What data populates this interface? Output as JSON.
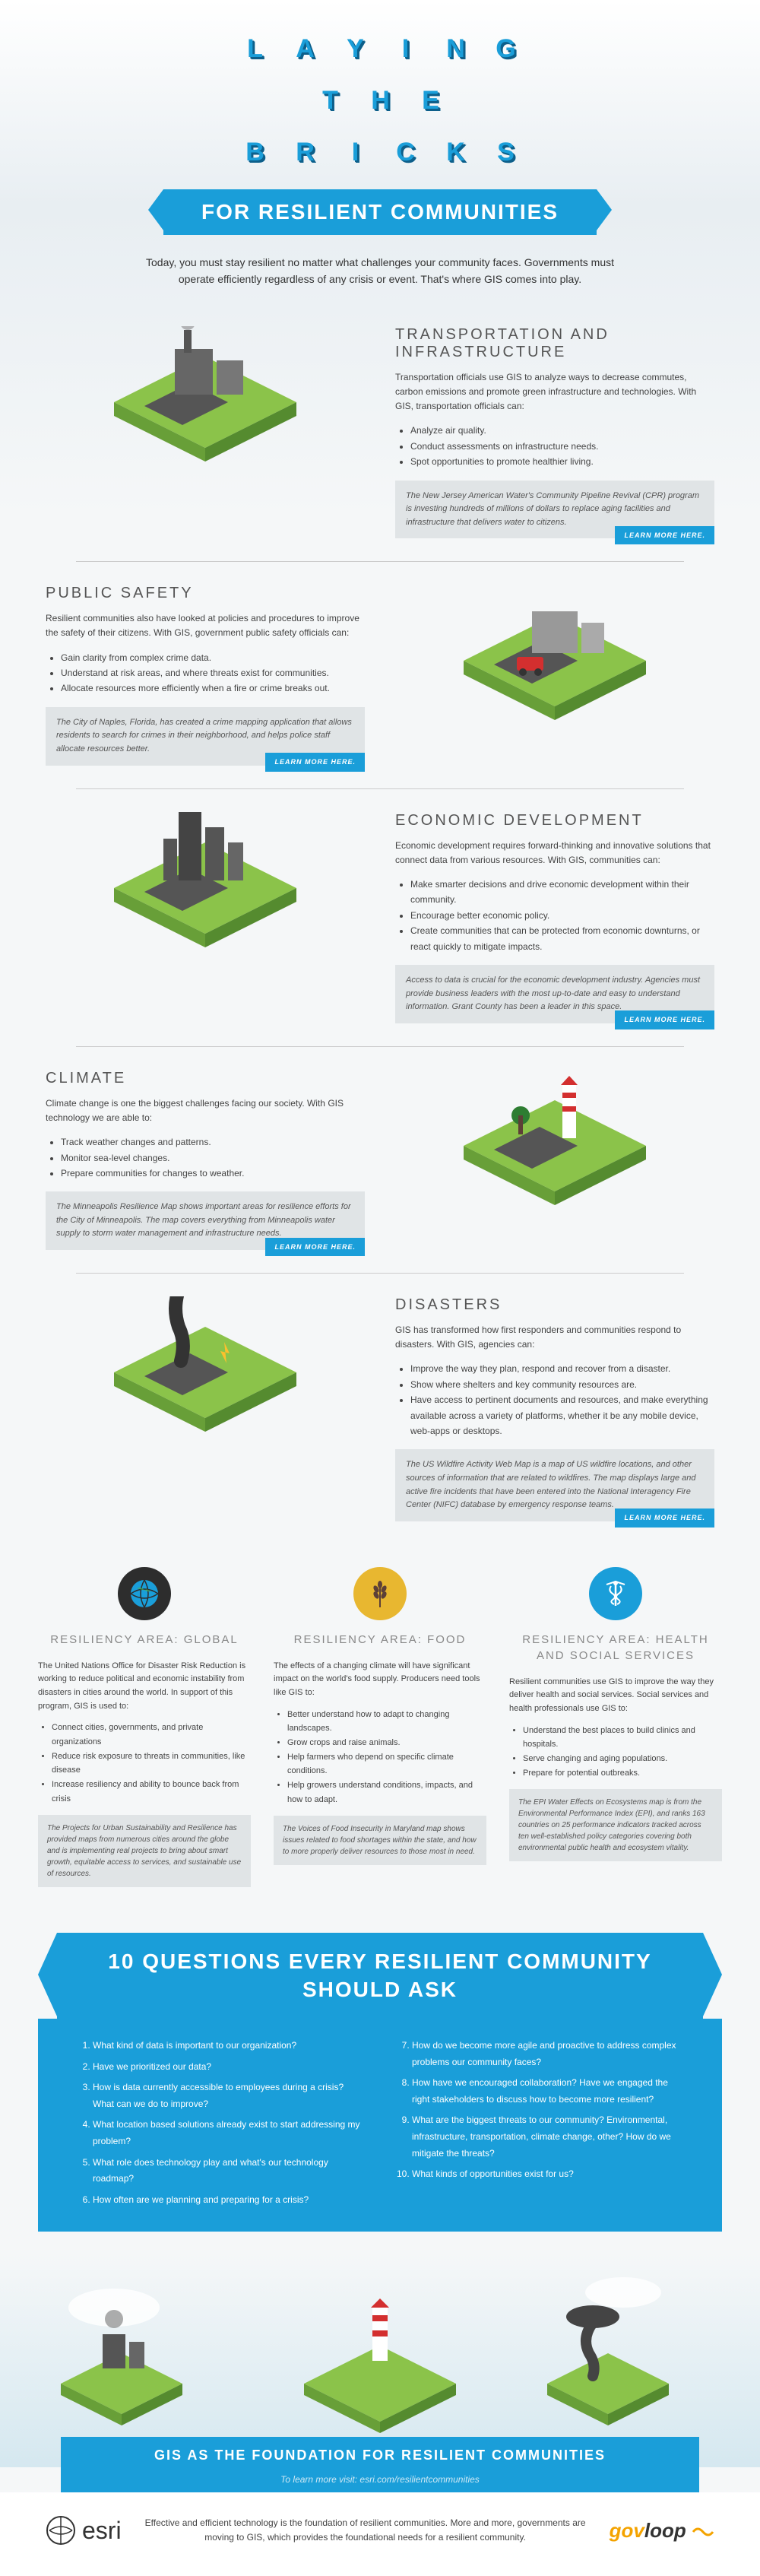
{
  "header": {
    "title_letters": [
      "L",
      "A",
      "Y",
      "I",
      "N",
      "G",
      "T",
      "H",
      "E",
      "B",
      "R",
      "I",
      "C",
      "K",
      "S"
    ],
    "banner": "FOR RESILIENT COMMUNITIES",
    "intro": "Today, you must stay resilient no matter what challenges your community faces. Governments must operate efficiently regardless of any crisis or event. That's where GIS comes into play."
  },
  "sections": [
    {
      "side": "right-text",
      "title": "TRANSPORTATION AND INFRASTRUCTURE",
      "desc": "Transportation officials use GIS to analyze ways to decrease commutes, carbon emissions and promote green infrastructure and technologies. With GIS, transportation officials can:",
      "items": [
        "Analyze air quality.",
        "Conduct assessments on infrastructure needs.",
        "Spot opportunities to promote healthier living."
      ],
      "callout": "The New Jersey American Water's Community Pipeline Revival (CPR) program is investing hundreds of millions of dollars to replace aging facilities and infrastructure that delivers water to citizens.",
      "learn": "LEARN MORE HERE.",
      "scene": "factory"
    },
    {
      "side": "left-text",
      "title": "PUBLIC SAFETY",
      "desc": "Resilient communities also have looked at policies and procedures to improve the safety of their citizens. With GIS, government public safety officials can:",
      "items": [
        "Gain clarity from complex crime data.",
        "Understand at risk areas, and where threats exist for communities.",
        "Allocate resources more efficiently when a fire or crime breaks out."
      ],
      "callout": "The City of Naples, Florida, has created a crime mapping application that allows residents to search for crimes in their neighborhood, and helps police staff allocate resources better.",
      "learn": "LEARN MORE HERE.",
      "scene": "safety"
    },
    {
      "side": "right-text",
      "title": "ECONOMIC DEVELOPMENT",
      "desc": "Economic development requires forward-thinking and innovative solutions that connect data from various resources. With GIS, communities can:",
      "items": [
        "Make smarter decisions and drive economic development within their community.",
        "Encourage better economic policy.",
        "Create communities that can be protected from economic downturns, or react quickly to mitigate impacts."
      ],
      "callout": "Access to data is crucial for the economic development industry. Agencies must provide business leaders with the most up-to-date and easy to understand information. Grant County has been a leader in this space.",
      "learn": "LEARN MORE HERE.",
      "scene": "city"
    },
    {
      "side": "left-text",
      "title": "CLIMATE",
      "desc": "Climate change is one the biggest challenges facing our society. With GIS technology we are able to:",
      "items": [
        "Track weather changes and patterns.",
        "Monitor sea-level changes.",
        "Prepare communities for changes to weather."
      ],
      "callout": "The Minneapolis Resilience Map shows important areas for resilience efforts for the City of Minneapolis. The map covers everything from Minneapolis water supply to storm water management and infrastructure needs.",
      "learn": "LEARN MORE HERE.",
      "scene": "climate"
    },
    {
      "side": "right-text",
      "title": "DISASTERS",
      "desc": "GIS has transformed how first responders and communities respond to disasters. With GIS, agencies can:",
      "items": [
        "Improve the way they plan, respond and recover from a disaster.",
        "Show where shelters and key community resources are.",
        "Have access to pertinent documents and resources, and make everything available across a variety of platforms, whether it be any mobile device, web-apps or desktops."
      ],
      "callout": "The US Wildfire Activity Web Map is a map of US wildfire locations, and other sources of information that are related to wildfires. The map displays large and active fire incidents that have been entered into the National Interagency Fire Center (NIFC) database by emergency response teams.",
      "learn": "LEARN MORE HERE.",
      "scene": "disaster"
    }
  ],
  "areas": [
    {
      "icon": "dark",
      "glyph": "globe",
      "title": "RESILIENCY AREA: GLOBAL",
      "desc": "The United Nations Office for Disaster Risk Reduction is working to reduce political and economic instability from disasters in cities around the world. In support of this program, GIS is used to:",
      "items": [
        "Connect cities, governments, and private organizations",
        "Reduce risk exposure to threats in communities, like disease",
        "Increase resiliency and ability to bounce back from crisis"
      ],
      "callout": "The Projects for Urban Sustainability and Resilience has provided maps from numerous cities around the globe and is implementing real projects to bring about smart growth, equitable access to services, and sustainable use of resources."
    },
    {
      "icon": "yellow",
      "glyph": "wheat",
      "title": "RESILIENCY AREA: FOOD",
      "desc": "The effects of a changing climate will have significant impact on the world's food supply. Producers need tools like GIS to:",
      "items": [
        "Better understand how to adapt to changing landscapes.",
        "Grow crops and raise animals.",
        "Help farmers who depend on specific climate conditions.",
        "Help growers understand conditions, impacts, and how to adapt."
      ],
      "callout": "The Voices of Food Insecurity in Maryland map shows issues related to food shortages within the state, and how to more properly deliver resources to those most in need."
    },
    {
      "icon": "blue",
      "glyph": "medical",
      "title": "RESILIENCY AREA: HEALTH AND SOCIAL SERVICES",
      "desc": "Resilient communities use GIS to improve the way they deliver health and social services. Social services and health professionals use GIS to:",
      "items": [
        "Understand the best places to build clinics and hospitals.",
        "Serve changing and aging populations.",
        "Prepare for potential outbreaks."
      ],
      "callout": "The EPI Water Effects on Ecosystems map is from the Environmental Performance Index (EPI), and ranks 163 countries on 25 performance indicators tracked across ten well-established policy categories covering both environmental public health and ecosystem vitality."
    }
  ],
  "questions": {
    "banner": "10 QUESTIONS EVERY RESILIENT COMMUNITY SHOULD ASK",
    "left": [
      "What kind of data is important to our organization?",
      "Have we prioritized our data?",
      "How is data currently accessible to employees during a crisis? What can we do to improve?",
      "What location based solutions already exist to start addressing my problem?",
      "What role does technology play and what's our technology roadmap?",
      "How often are we planning and preparing for a crisis?"
    ],
    "right": [
      "How do we become more agile and proactive to address complex problems our community faces?",
      "How have we encouraged collaboration? Have we engaged the right stakeholders to discuss how to become more resilient?",
      "What are the biggest threats to our community? Environmental, infrastructure, transportation, climate change, other? How do we mitigate the threats?",
      "What kinds of opportunities exist for us?"
    ]
  },
  "footer": {
    "banner": "GIS AS THE FOUNDATION FOR RESILIENT COMMUNITIES",
    "sub": "To learn more visit: esri.com/resilientcommunities",
    "text": "Effective and efficient technology is the foundation of resilient communities. More and more, governments are moving to GIS, which provides the foundational needs for a resilient community.",
    "esri": "esri",
    "govloop_gov": "gov",
    "govloop_loop": "loop"
  },
  "colors": {
    "primary": "#1a9ed9",
    "green": "#8bc34a",
    "dark": "#2d2d2d",
    "yellow": "#e8b730"
  }
}
